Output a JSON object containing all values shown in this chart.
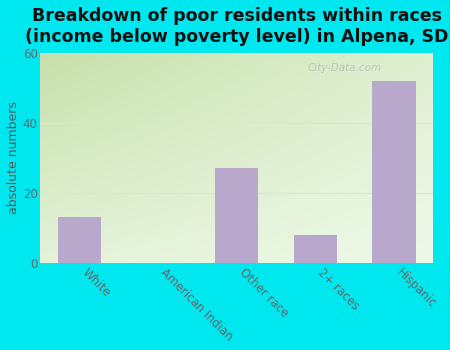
{
  "categories": [
    "White",
    "American Indian",
    "Other race",
    "2+ races",
    "Hispanic"
  ],
  "values": [
    13,
    0,
    27,
    8,
    52
  ],
  "bar_color": "#b8a8cc",
  "title_line1": "Breakdown of poor residents within races",
  "title_line2": "(income below poverty level) in Alpena, SD",
  "ylabel": "absolute numbers",
  "ylim": [
    0,
    60
  ],
  "yticks": [
    0,
    20,
    40,
    60
  ],
  "bg_outer": "#00e8ef",
  "bg_grad_topleft": "#c8ddb0",
  "bg_grad_bottomright": "#f5fff5",
  "grid_color": "#d8e8c8",
  "watermark": "City-Data.com",
  "title_fontsize": 12.5,
  "ylabel_fontsize": 9,
  "tick_fontsize": 8.5,
  "title_color": "#111111"
}
